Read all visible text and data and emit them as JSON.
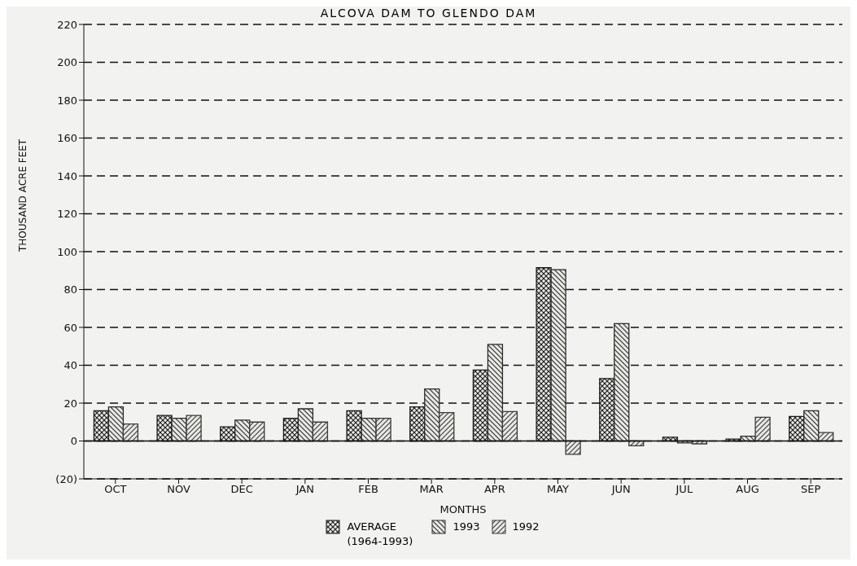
{
  "chart_data": {
    "type": "bar",
    "title": "ALCOVA DAM TO GLENDO DAM",
    "xlabel": "MONTHS",
    "ylabel": "THOUSAND ACRE FEET",
    "categories": [
      "OCT",
      "NOV",
      "DEC",
      "JAN",
      "FEB",
      "MAR",
      "APR",
      "MAY",
      "JUN",
      "JUL",
      "AUG",
      "SEP"
    ],
    "series": [
      {
        "name": "AVERAGE (1964-1993)",
        "color": "#1a1a1a",
        "values": [
          16,
          13.5,
          7.5,
          12,
          16,
          18,
          37.5,
          91.5,
          33,
          2,
          1,
          13
        ]
      },
      {
        "name": "1993",
        "color": "#2a2a2a",
        "values": [
          18,
          12,
          11,
          17,
          12,
          27.5,
          51,
          90.5,
          62,
          -1,
          2.5,
          16
        ]
      },
      {
        "name": "1992",
        "color": "#3a3a3a",
        "values": [
          9,
          13.5,
          10,
          10,
          12,
          15,
          15.5,
          -7,
          -2.5,
          -1.5,
          12.5,
          4.5
        ]
      }
    ],
    "ylim": [
      -20,
      220
    ],
    "yticks": [
      {
        "value": -20,
        "label": "(20)"
      },
      0,
      20,
      40,
      60,
      80,
      100,
      120,
      140,
      160,
      180,
      200,
      220
    ],
    "ref_lines": [
      {
        "axis": "y",
        "value": 0
      }
    ],
    "grid": "y",
    "line_style": "dashed",
    "legend": "bottom"
  }
}
